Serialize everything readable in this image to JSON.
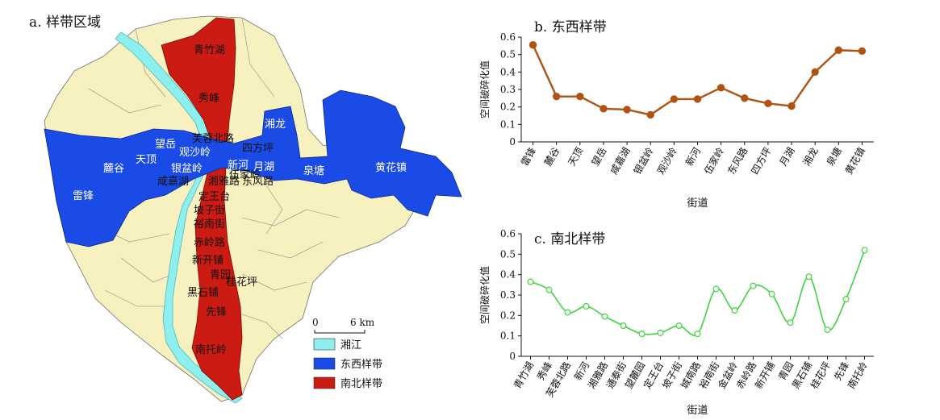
{
  "map": {
    "title": "a. 样带区域",
    "scale_zero": "0",
    "scale_label": "6 km",
    "legend": [
      {
        "label": "湘江",
        "color": "#8eefef"
      },
      {
        "label": "东西样带",
        "color": "#1b4be6"
      },
      {
        "label": "南北样带",
        "color": "#cc1b12"
      }
    ],
    "background_color": "#f6f1bf",
    "ew_labels": [
      "雷锋",
      "麓谷",
      "天顶",
      "望岳",
      "观沙岭",
      "银盆岭",
      "咸嘉湖",
      "新河",
      "四方坪",
      "月湖",
      "湘龙",
      "泉塘",
      "黄花镇"
    ],
    "ns_labels": [
      "青竹湖",
      "秀峰",
      "芙蓉北路",
      "湘雅路",
      "伍家岭",
      "东风路",
      "定王台",
      "坡子街",
      "裕南街",
      "赤岭路",
      "新开铺",
      "青园",
      "桂花坪",
      "黑石铺",
      "先锋",
      "南托岭"
    ]
  },
  "chart_data": [
    {
      "type": "line",
      "title": "b. 东西样带",
      "xlabel": "街道",
      "ylabel": "空间破碎化值",
      "ylim": [
        0,
        0.6
      ],
      "yticks": [
        "0",
        "0.1",
        "0.2",
        "0.3",
        "0.4",
        "0.5",
        "0.6"
      ],
      "categories": [
        "雷锋",
        "麓谷",
        "天顶",
        "望岳",
        "咸嘉湖",
        "银盆岭",
        "观沙岭",
        "新河",
        "伍家岭",
        "东风路",
        "四方坪",
        "月湖",
        "湘龙",
        "泉塘",
        "黄花镇"
      ],
      "values": [
        0.555,
        0.26,
        0.26,
        0.19,
        0.185,
        0.155,
        0.245,
        0.245,
        0.31,
        0.25,
        0.22,
        0.205,
        0.4,
        0.525,
        0.52
      ],
      "color": "#b05212",
      "marker": "filled-circle"
    },
    {
      "type": "line",
      "title": "c. 南北样带",
      "xlabel": "街道",
      "ylabel": "空间破碎化值",
      "ylim": [
        0,
        0.6
      ],
      "yticks": [
        "0",
        "0.1",
        "0.2",
        "0.3",
        "0.4",
        "0.5",
        "0.6"
      ],
      "categories": [
        "青竹湖",
        "秀峰",
        "芙蓉北路",
        "新河",
        "湘雅路",
        "通泰街",
        "望麓园",
        "定王台",
        "坡子街",
        "城南路",
        "裕南街",
        "金盆岭",
        "赤岭路",
        "新开铺",
        "青园",
        "黑石铺",
        "桂花坪",
        "先锋",
        "南托岭"
      ],
      "values": [
        0.365,
        0.325,
        0.215,
        0.245,
        0.195,
        0.15,
        0.11,
        0.115,
        0.15,
        0.11,
        0.33,
        0.225,
        0.345,
        0.305,
        0.165,
        0.39,
        0.13,
        0.28,
        0.52
      ],
      "color": "#3ed43e",
      "marker": "open-circle",
      "smooth": true
    }
  ]
}
